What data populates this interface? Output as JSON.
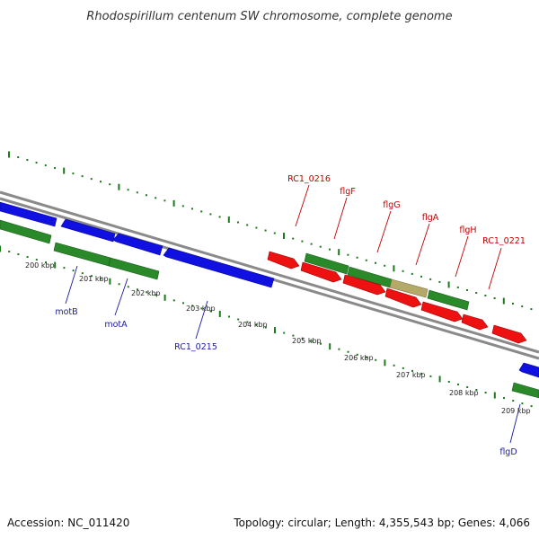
{
  "title": "Rhodospirillum centenum SW chromosome, complete genome",
  "footer": {
    "accession": "Accession: NC_011420",
    "topology": "Topology: circular; Length: 4,355,543 bp; Genes: 4,066"
  },
  "colors": {
    "forward_gene": "#2a8a2a",
    "reverse_gene": "#1010e0",
    "red_gene": "#ee1111",
    "highlight_gene": "#b5a96a",
    "backbone": "#8a8a8a",
    "dots": "#1a7a1a",
    "label_red": "#c00000",
    "label_blue": "#1a1aa0"
  },
  "tick_labels": [
    "200 kbp",
    "201 kbp",
    "202 kbp",
    "203 kbp",
    "204 kbp",
    "205 kbp",
    "206 kbp",
    "207 kbp",
    "208 kbp",
    "209 kbp"
  ],
  "gene_labels_top": [
    "RC1_0216",
    "flgF",
    "flgG",
    "flgA",
    "flgH",
    "RC1_0221"
  ],
  "gene_labels_bottom": [
    "motB",
    "motA",
    "RC1_0215",
    "flgD"
  ]
}
